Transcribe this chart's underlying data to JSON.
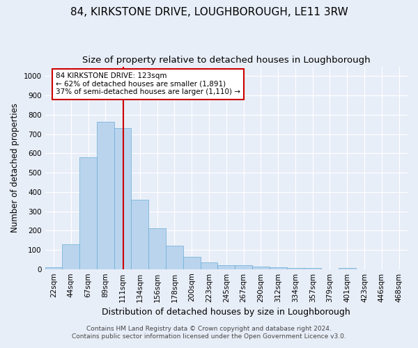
{
  "title": "84, KIRKSTONE DRIVE, LOUGHBOROUGH, LE11 3RW",
  "subtitle": "Size of property relative to detached houses in Loughborough",
  "xlabel": "Distribution of detached houses by size in Loughborough",
  "ylabel": "Number of detached properties",
  "bar_labels": [
    "22sqm",
    "44sqm",
    "67sqm",
    "89sqm",
    "111sqm",
    "134sqm",
    "156sqm",
    "178sqm",
    "200sqm",
    "223sqm",
    "245sqm",
    "267sqm",
    "290sqm",
    "312sqm",
    "334sqm",
    "357sqm",
    "379sqm",
    "401sqm",
    "423sqm",
    "446sqm",
    "468sqm"
  ],
  "bar_values": [
    10,
    128,
    578,
    765,
    730,
    360,
    210,
    120,
    62,
    35,
    20,
    20,
    15,
    8,
    5,
    5,
    0,
    5,
    0,
    0,
    0
  ],
  "bar_color": "#bad4ee",
  "bar_edge_color": "#6aadd5",
  "vline_color": "#cc0000",
  "ylim": [
    0,
    1050
  ],
  "yticks": [
    0,
    100,
    200,
    300,
    400,
    500,
    600,
    700,
    800,
    900,
    1000
  ],
  "annotation_text": "84 KIRKSTONE DRIVE: 123sqm\n← 62% of detached houses are smaller (1,891)\n37% of semi-detached houses are larger (1,110) →",
  "annotation_box_color": "#ffffff",
  "annotation_box_edge": "#cc0000",
  "footnote1": "Contains HM Land Registry data © Crown copyright and database right 2024.",
  "footnote2": "Contains public sector information licensed under the Open Government Licence v3.0.",
  "background_color": "#e8eef8",
  "plot_background": "#e8eef8",
  "grid_color": "#ffffff",
  "title_fontsize": 11,
  "subtitle_fontsize": 9.5,
  "xlabel_fontsize": 9,
  "ylabel_fontsize": 8.5,
  "tick_fontsize": 7.5,
  "annot_fontsize": 7.5,
  "footnote_fontsize": 6.5,
  "bin_edges": [
    22,
    44,
    67,
    89,
    111,
    134,
    156,
    178,
    200,
    223,
    245,
    267,
    290,
    312,
    334,
    357,
    379,
    401,
    423,
    446,
    468
  ],
  "property_sqm": 123
}
